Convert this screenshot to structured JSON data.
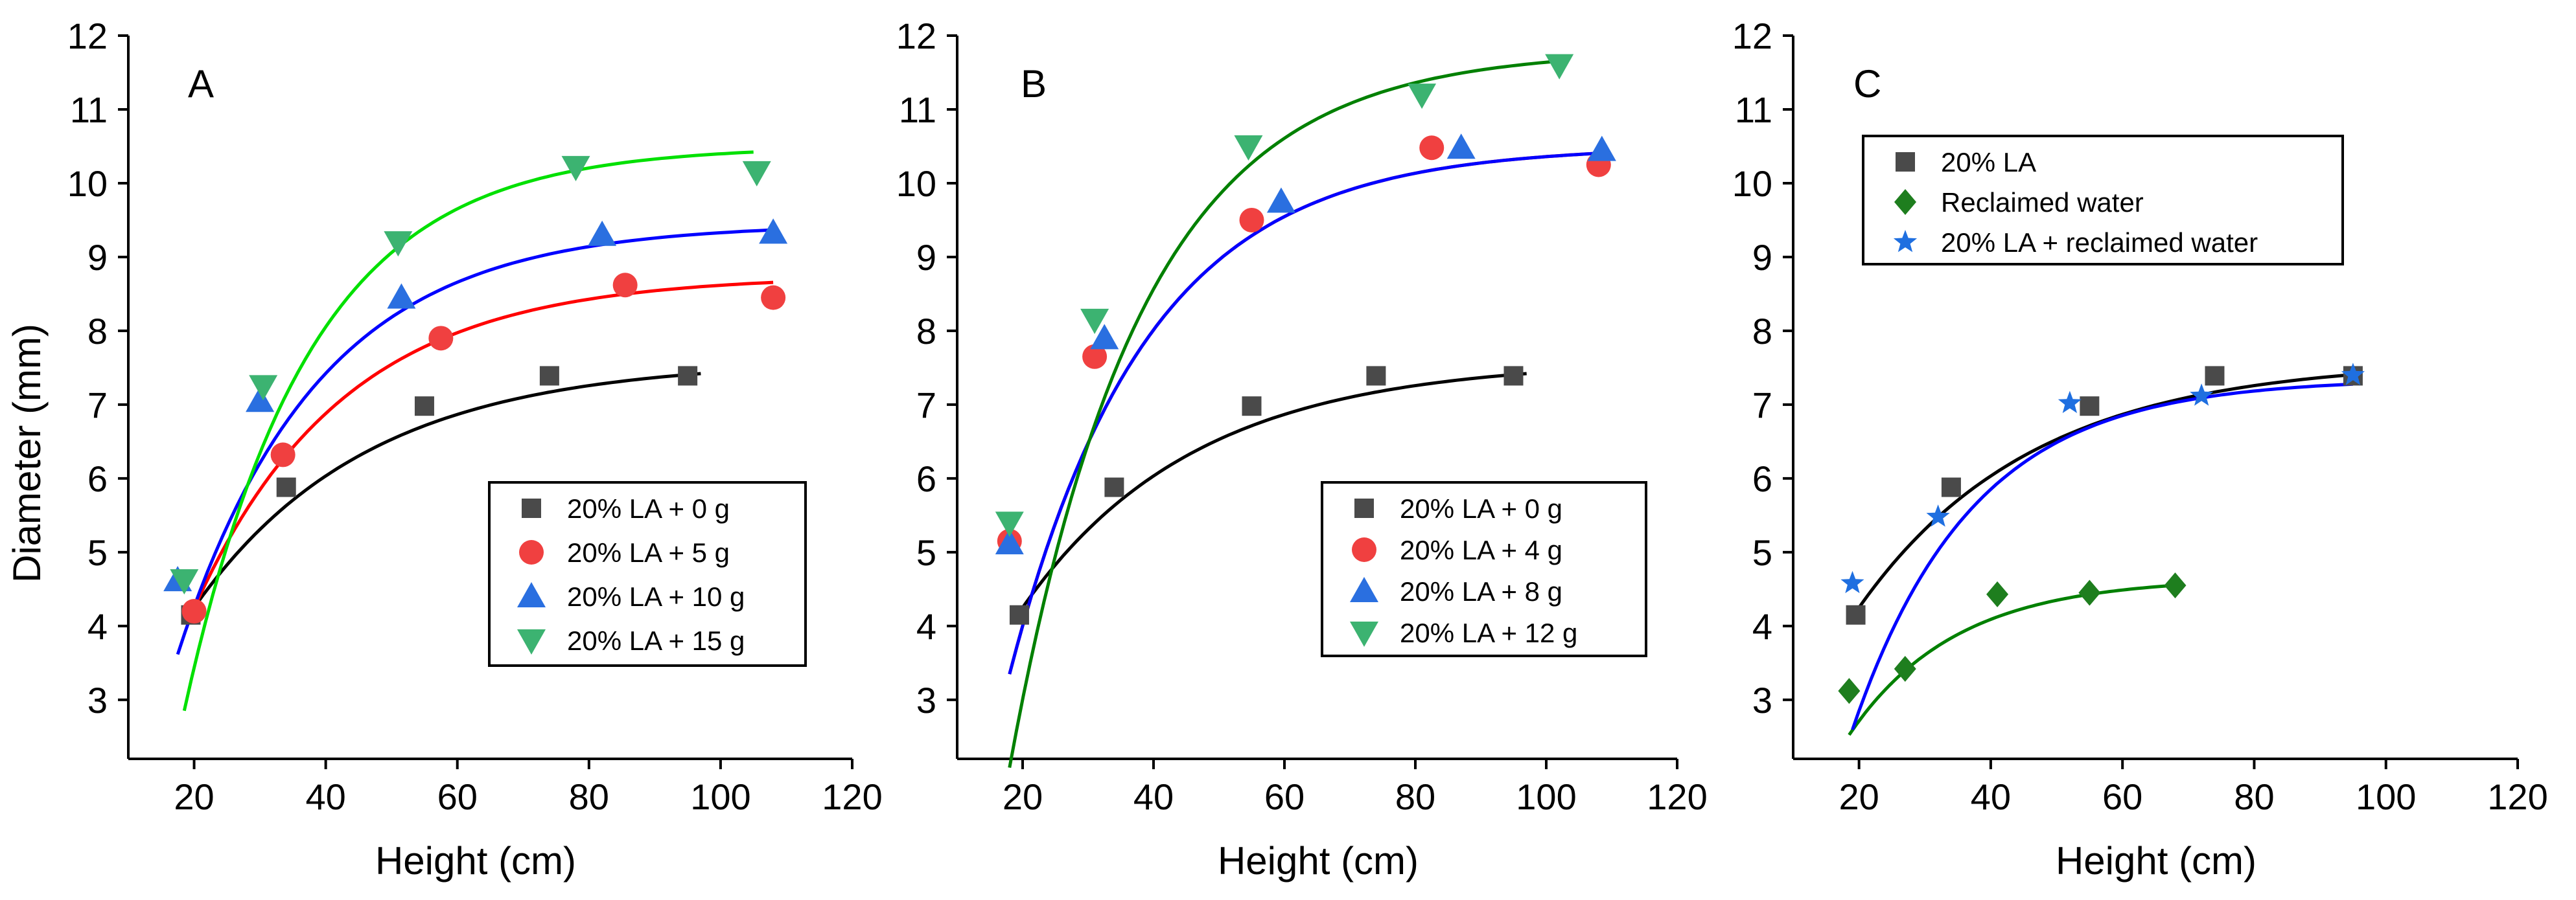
{
  "figure": {
    "y_axis_title": "Diameter (mm)"
  },
  "chart_data": [
    {
      "type": "scatter",
      "panel_label": "A",
      "xlabel": "Height (cm)",
      "ylabel": "Diameter (mm)",
      "xlim": [
        10,
        120
      ],
      "ylim": [
        2.2,
        12
      ],
      "x_ticks": [
        20,
        40,
        60,
        80,
        100,
        120
      ],
      "y_ticks": [
        3,
        4,
        5,
        6,
        7,
        8,
        9,
        10,
        11,
        12
      ],
      "grid": false,
      "legend_position": "bottom-right",
      "series": [
        {
          "name": "20% LA + 0 g",
          "marker": "square",
          "color": "#4a4a4a",
          "line_color": "#000000",
          "x": [
            19.5,
            34,
            55,
            74,
            95
          ],
          "y": [
            4.15,
            5.88,
            6.98,
            7.39,
            7.39
          ],
          "fit": {
            "a": 7.6,
            "b": 4.9,
            "k": 0.038,
            "x0": 19.5,
            "x1": 97
          }
        },
        {
          "name": "20% LA + 5 g",
          "marker": "circle",
          "color": "#f04040",
          "line_color": "#ff0000",
          "x": [
            20,
            33.5,
            57.5,
            85.5,
            108
          ],
          "y": [
            4.2,
            6.32,
            7.9,
            8.62,
            8.45
          ],
          "fit": {
            "a": 8.75,
            "b": 7.0,
            "k": 0.044,
            "x0": 19.5,
            "x1": 108
          }
        },
        {
          "name": "20% LA + 10 g",
          "marker": "triangle-up",
          "color": "#2a6fe0",
          "line_color": "#0000ff",
          "x": [
            17.5,
            30,
            51.5,
            82,
            108
          ],
          "y": [
            4.62,
            7.05,
            8.45,
            9.3,
            9.33
          ],
          "fit": {
            "a": 9.45,
            "b": 8.3,
            "k": 0.047,
            "x0": 17.5,
            "x1": 108
          }
        },
        {
          "name": "20% LA + 15 g",
          "marker": "triangle-down",
          "color": "#3cb371",
          "line_color": "#00e000",
          "x": [
            18.5,
            30.5,
            51,
            78,
            105.5
          ],
          "y": [
            4.62,
            7.25,
            9.2,
            10.22,
            10.15
          ],
          "fit": {
            "a": 10.5,
            "b": 12.0,
            "k": 0.053,
            "x0": 18.5,
            "x1": 105
          }
        }
      ]
    },
    {
      "type": "scatter",
      "panel_label": "B",
      "xlabel": "Height (cm)",
      "ylabel": "",
      "xlim": [
        10,
        120
      ],
      "ylim": [
        2.2,
        12
      ],
      "x_ticks": [
        20,
        40,
        60,
        80,
        100,
        120
      ],
      "y_ticks": [
        3,
        4,
        5,
        6,
        7,
        8,
        9,
        10,
        11,
        12
      ],
      "grid": false,
      "legend_position": "bottom-right",
      "series": [
        {
          "name": "20% LA + 0 g",
          "marker": "square",
          "color": "#4a4a4a",
          "line_color": "#000000",
          "x": [
            19.5,
            34,
            55,
            74,
            95
          ],
          "y": [
            4.15,
            5.88,
            6.98,
            7.39,
            7.39
          ],
          "fit": {
            "a": 7.6,
            "b": 4.9,
            "k": 0.038,
            "x0": 19.5,
            "x1": 97
          }
        },
        {
          "name": "20% LA + 4 g",
          "marker": "circle",
          "color": "#f04040",
          "line_color": "#ff0000",
          "x": [
            18,
            31,
            55,
            82.5,
            108
          ],
          "y": [
            5.15,
            7.65,
            9.5,
            10.48,
            10.25
          ],
          "fit": {
            "a": 10.5,
            "b": 10.5,
            "k": 0.048,
            "x0": 18,
            "x1": 108
          }
        },
        {
          "name": "20% LA + 8 g",
          "marker": "triangle-up",
          "color": "#2a6fe0",
          "line_color": "#0000ff",
          "x": [
            18,
            32.5,
            59.5,
            87,
            108.5
          ],
          "y": [
            5.12,
            7.9,
            9.75,
            10.48,
            10.45
          ],
          "fit": {
            "a": 10.5,
            "b": 10.5,
            "k": 0.048,
            "x0": 18,
            "x1": 108
          }
        },
        {
          "name": "20% LA + 12 g",
          "marker": "triangle-down",
          "color": "#3cb371",
          "line_color": "#008000",
          "x": [
            18,
            31,
            54.5,
            81,
            102
          ],
          "y": [
            5.4,
            8.15,
            10.5,
            11.2,
            11.6
          ],
          "fit": {
            "a": 11.8,
            "b": 14.5,
            "k": 0.05,
            "x0": 18,
            "x1": 102
          }
        }
      ]
    },
    {
      "type": "scatter",
      "panel_label": "C",
      "xlabel": "Height (cm)",
      "ylabel": "",
      "xlim": [
        10,
        120
      ],
      "ylim": [
        2.2,
        12
      ],
      "x_ticks": [
        20,
        40,
        60,
        80,
        100,
        120
      ],
      "y_ticks": [
        3,
        4,
        5,
        6,
        7,
        8,
        9,
        10,
        11,
        12
      ],
      "grid": false,
      "legend_position": "top-left",
      "series": [
        {
          "name": "20% LA",
          "marker": "square",
          "color": "#4a4a4a",
          "line_color": "#000000",
          "x": [
            19.5,
            34,
            55,
            74,
            95
          ],
          "y": [
            4.15,
            5.88,
            6.98,
            7.39,
            7.39
          ],
          "fit": {
            "a": 7.6,
            "b": 4.9,
            "k": 0.038,
            "x0": 19.5,
            "x1": 95
          }
        },
        {
          "name": "Reclaimed water",
          "marker": "diamond",
          "color": "#1e7e1e",
          "line_color": "#008000",
          "x": [
            18.5,
            27,
            41,
            55,
            68
          ],
          "y": [
            3.12,
            3.42,
            4.43,
            4.45,
            4.55
          ],
          "fit": {
            "a": 4.65,
            "b": 3.6,
            "k": 0.062,
            "x0": 18.5,
            "x1": 68
          }
        },
        {
          "name": "20% LA + reclaimed water",
          "marker": "star",
          "color": "#1f6fe0",
          "line_color": "#0000ff",
          "x": [
            19,
            32,
            52,
            72,
            95
          ],
          "y": [
            4.58,
            5.48,
            7.02,
            7.12,
            7.4
          ],
          "fit": {
            "a": 7.35,
            "b": 7.8,
            "k": 0.055,
            "x0": 19,
            "x1": 95
          }
        }
      ]
    }
  ]
}
